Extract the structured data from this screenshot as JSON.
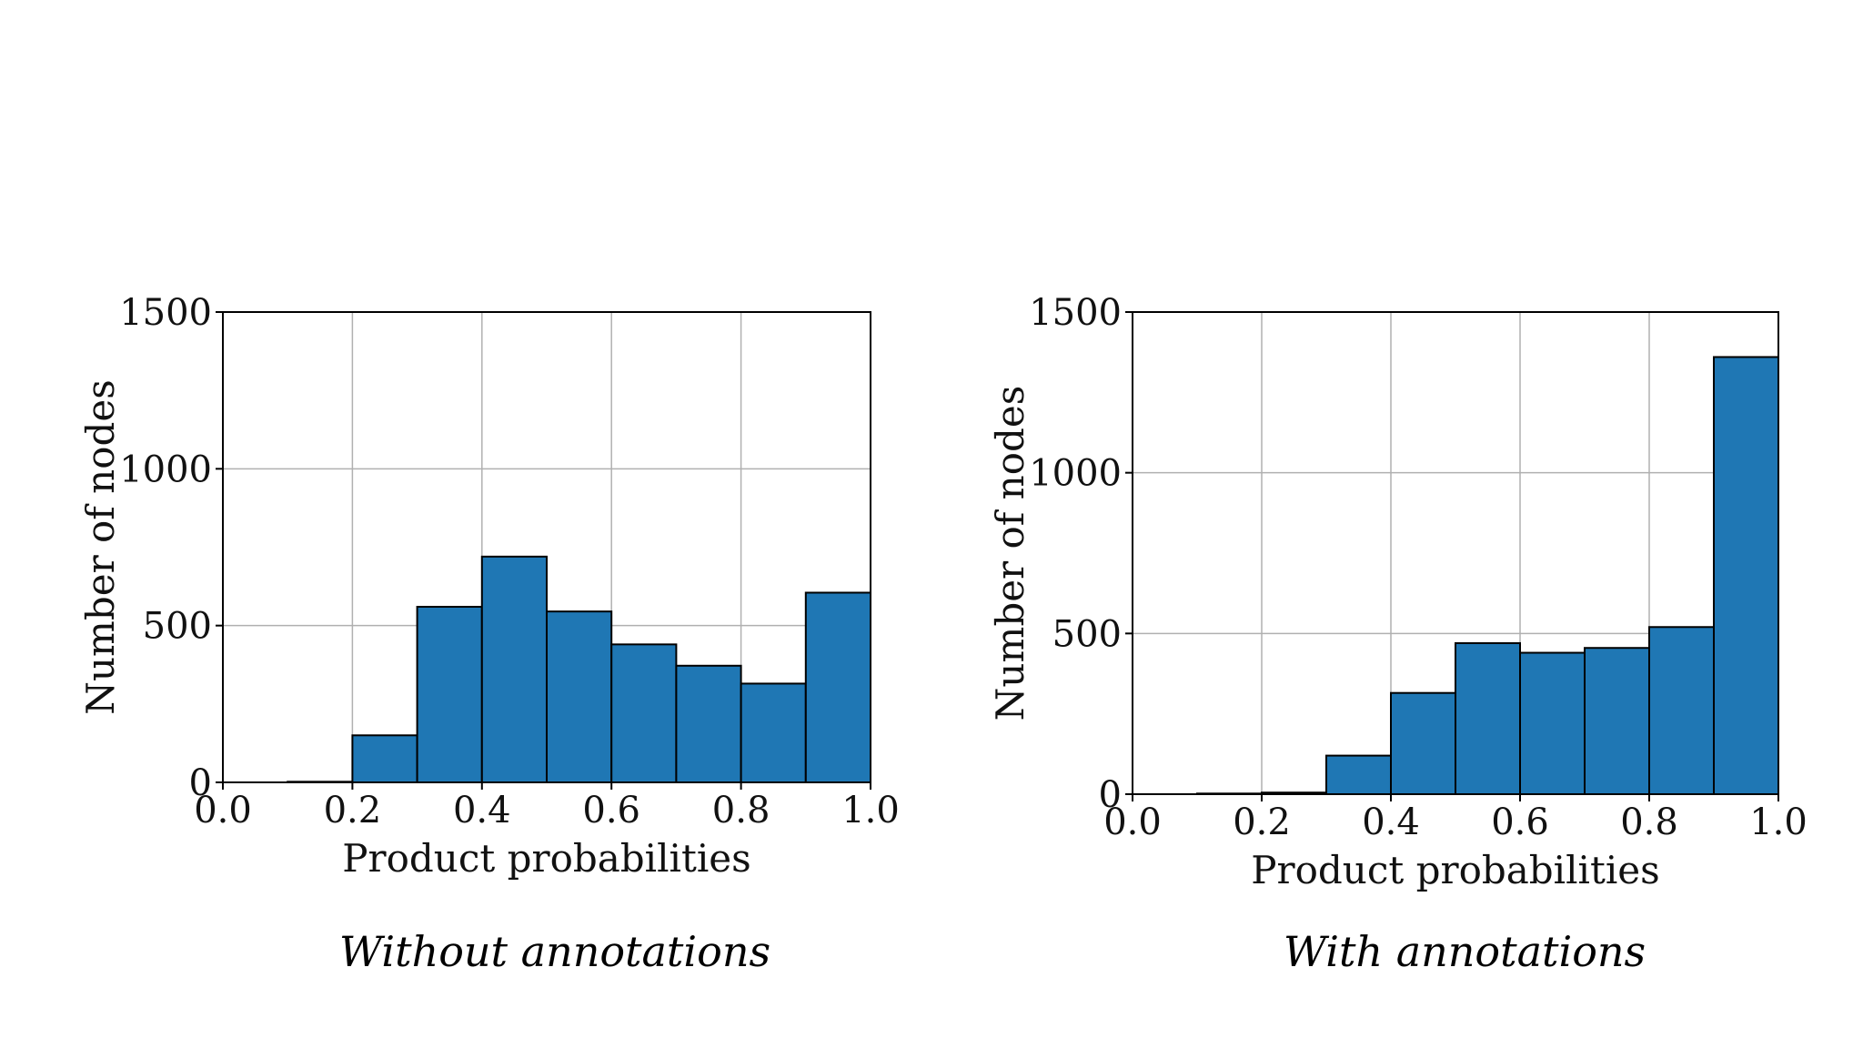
{
  "chart_data": [
    {
      "type": "bar",
      "subtitle": "Without annotations",
      "xlabel": "Product probabilities",
      "ylabel": "Number of nodes",
      "bin_edges": [
        0.0,
        0.1,
        0.2,
        0.3,
        0.4,
        0.5,
        0.6,
        0.7,
        0.8,
        0.9,
        1.0
      ],
      "values": [
        0,
        2,
        150,
        560,
        720,
        545,
        440,
        372,
        315,
        605
      ],
      "xlim": [
        0.0,
        1.0
      ],
      "ylim": [
        0,
        1500
      ],
      "xticks": [
        "0.0",
        "0.2",
        "0.4",
        "0.6",
        "0.8",
        "1.0"
      ],
      "yticks": [
        "0",
        "500",
        "1000",
        "1500"
      ],
      "grid": true,
      "color": "#1f77b4"
    },
    {
      "type": "bar",
      "subtitle": "With annotations",
      "xlabel": "Product probabilities",
      "ylabel": "Number of nodes",
      "bin_edges": [
        0.0,
        0.1,
        0.2,
        0.3,
        0.4,
        0.5,
        0.6,
        0.7,
        0.8,
        0.9,
        1.0
      ],
      "values": [
        0,
        2,
        5,
        120,
        315,
        470,
        440,
        455,
        520,
        1360
      ],
      "xlim": [
        0.0,
        1.0
      ],
      "ylim": [
        0,
        1500
      ],
      "xticks": [
        "0.0",
        "0.2",
        "0.4",
        "0.6",
        "0.8",
        "1.0"
      ],
      "yticks": [
        "0",
        "500",
        "1000",
        "1500"
      ],
      "grid": true,
      "color": "#1f77b4"
    }
  ]
}
